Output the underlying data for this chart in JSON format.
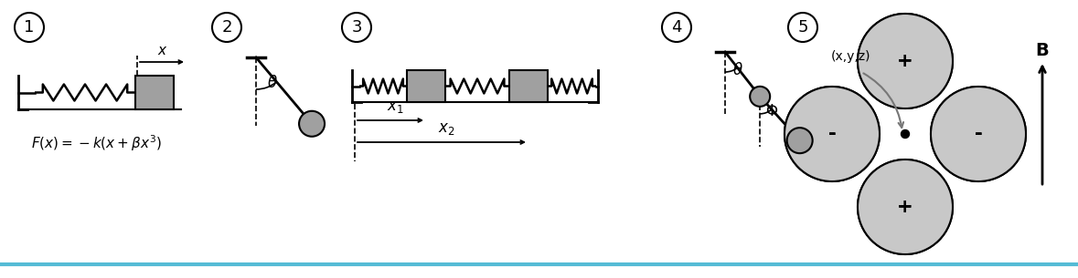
{
  "bg_color": "#ffffff",
  "line_color": "#000000",
  "gray_fill": "#aaaaaa",
  "pole_gray": "#c8c8c8",
  "blue_line_color": "#55bbd5",
  "panel_numbers": [
    "1",
    "2",
    "3",
    "4",
    "5"
  ],
  "formula1": "F(x) = -k(x + βx³)"
}
